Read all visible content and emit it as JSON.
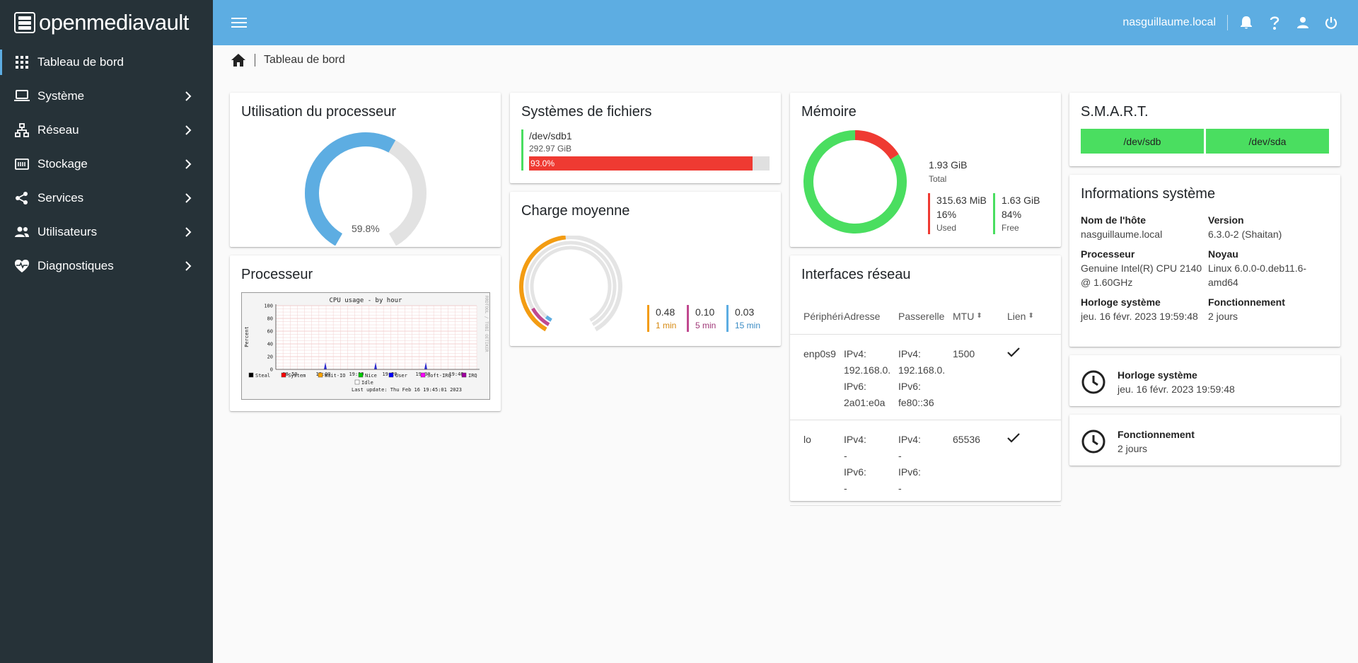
{
  "app": {
    "name": "openmediavault"
  },
  "sidebar": {
    "items": [
      {
        "label": "Tableau de bord",
        "icon": "grid-icon",
        "active": true
      },
      {
        "label": "Système",
        "icon": "laptop-icon"
      },
      {
        "label": "Réseau",
        "icon": "network-icon"
      },
      {
        "label": "Stockage",
        "icon": "storage-icon"
      },
      {
        "label": "Services",
        "icon": "share-icon"
      },
      {
        "label": "Utilisateurs",
        "icon": "users-icon"
      },
      {
        "label": "Diagnostiques",
        "icon": "heartbeat-icon"
      }
    ]
  },
  "topbar": {
    "hostname": "nasguillaume.local"
  },
  "breadcrumb": {
    "current": "Tableau de bord"
  },
  "cpu_usage": {
    "title": "Utilisation du processeur",
    "value_label": "59.8%",
    "value": 59.8,
    "color": "#5dade2"
  },
  "filesystems": {
    "title": "Systèmes de fichiers",
    "entries": [
      {
        "device": "/dev/sdb1",
        "size": "292.97 GiB",
        "usage_label": "93.0%",
        "usage": 93.0
      }
    ]
  },
  "load": {
    "title": "Charge moyenne",
    "items": [
      {
        "value": "0.48",
        "label": "1 min",
        "color": "#f39c12",
        "level": 0.48
      },
      {
        "value": "0.10",
        "label": "5 min",
        "color": "#c0488f",
        "level": 0.1
      },
      {
        "value": "0.03",
        "label": "15 min",
        "color": "#5dade2",
        "level": 0.03
      }
    ]
  },
  "memory": {
    "title": "Mémoire",
    "total_value": "1.93 GiB",
    "total_label": "Total",
    "used": {
      "value": "315.63 MiB",
      "percent": "16%",
      "label": "Used",
      "fraction": 0.16,
      "color": "#ef3a32"
    },
    "free": {
      "value": "1.63 GiB",
      "percent": "84%",
      "label": "Free",
      "fraction": 0.84,
      "color": "#4ade60"
    }
  },
  "smart": {
    "title": "S.M.A.R.T.",
    "devices": [
      "/dev/sdb",
      "/dev/sda"
    ],
    "color": "#4ade60"
  },
  "sysinfo": {
    "title": "Informations système",
    "hostname_label": "Nom de l'hôte",
    "hostname": "nasguillaume.local",
    "version_label": "Version",
    "version": "6.3.0-2 (Shaitan)",
    "cpu_label": "Processeur",
    "cpu": "Genuine Intel(R) CPU 2140 @ 1.60GHz",
    "kernel_label": "Noyau",
    "kernel": "Linux 6.0.0-0.deb11.6-amd64",
    "clock_label": "Horloge système",
    "clock": "jeu. 16 févr. 2023 19:59:48",
    "uptime_label": "Fonctionnement",
    "uptime": "2 jours"
  },
  "clock_card": {
    "title": "Horloge système",
    "value": "jeu. 16 févr. 2023 19:59:48"
  },
  "uptime_card": {
    "title": "Fonctionnement",
    "value": "2 jours"
  },
  "processor": {
    "title": "Processeur",
    "graph": {
      "title": "CPU usage - by hour",
      "ylabel": "Percent",
      "yticks": [
        "100",
        "80",
        "60",
        "40",
        "20",
        "0"
      ],
      "xticks": [
        "18:50",
        "19:00",
        "19:10",
        "19:20",
        "19:30",
        "19:40"
      ],
      "legend": [
        "Steal",
        "System",
        "Wait-IO",
        "Nice",
        "User",
        "Soft-IRQ",
        "IRQ",
        "Idle"
      ],
      "legend_colors": [
        "#000000",
        "#ff0000",
        "#ffa500",
        "#00cc00",
        "#0000ff",
        "#ff00ff",
        "#a000a0",
        "#ffffff"
      ],
      "last_update": "Last update: Thu Feb 16 19:45:01 2023",
      "side_text": "RRDTOOL / TOBI OETIKER"
    }
  },
  "network": {
    "title": "Interfaces réseau",
    "columns": [
      "Périphérique",
      "Adresse",
      "Passerelle",
      "MTU",
      "Lien"
    ],
    "rows": [
      {
        "device": "enp0s9",
        "address": [
          "IPv4:",
          "192.168.0.",
          "IPv6:",
          "2a01:e0a"
        ],
        "gateway": [
          "IPv4:",
          "192.168.0.",
          "IPv6:",
          "fe80::36"
        ],
        "mtu": "1500",
        "link": true
      },
      {
        "device": "lo",
        "address": [
          "IPv4:",
          "-",
          "IPv6:",
          "-"
        ],
        "gateway": [
          "IPv4:",
          "-",
          "IPv6:",
          "-"
        ],
        "mtu": "65536",
        "link": true
      }
    ]
  }
}
